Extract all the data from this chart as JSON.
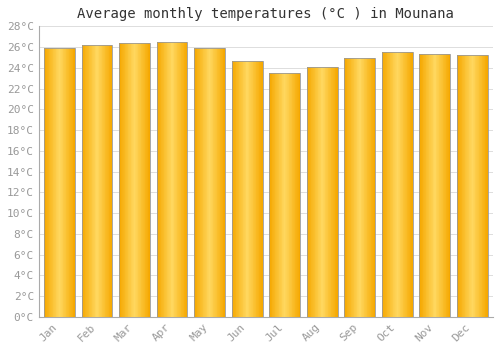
{
  "title": "Average monthly temperatures (°C ) in Mounana",
  "months": [
    "Jan",
    "Feb",
    "Mar",
    "Apr",
    "May",
    "Jun",
    "Jul",
    "Aug",
    "Sep",
    "Oct",
    "Nov",
    "Dec"
  ],
  "values": [
    25.9,
    26.2,
    26.4,
    26.5,
    25.9,
    24.7,
    23.5,
    24.1,
    24.9,
    25.5,
    25.3,
    25.2
  ],
  "bar_color_center": "#FFD060",
  "bar_color_edge": "#F5A800",
  "bar_border_color": "#999999",
  "background_color": "#FFFFFF",
  "grid_color": "#DDDDDD",
  "ylim": [
    0,
    28
  ],
  "ytick_step": 2,
  "title_fontsize": 10,
  "tick_fontsize": 8,
  "font_family": "monospace",
  "tick_color": "#999999",
  "title_color": "#333333"
}
